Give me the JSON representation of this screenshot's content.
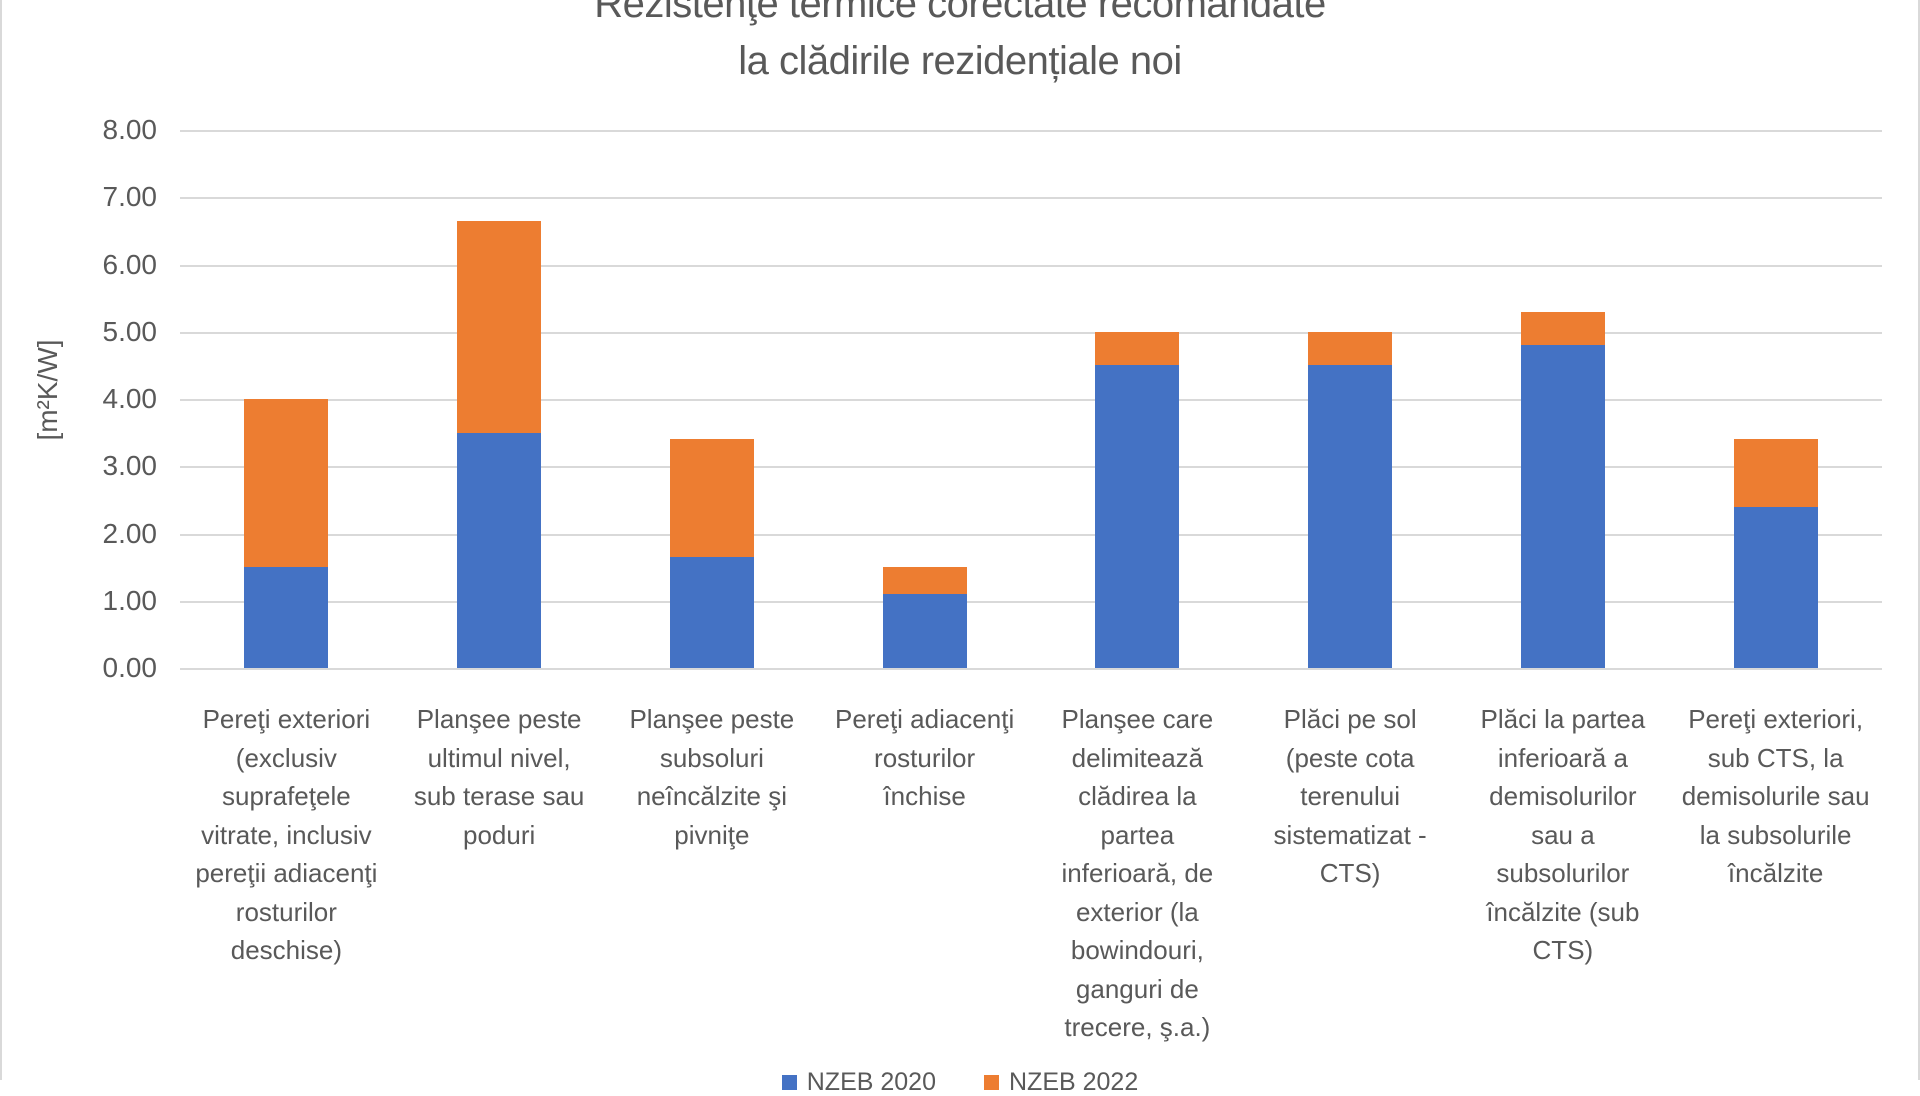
{
  "title": {
    "line1": "Rezistenţe termice corectate recomandate",
    "line2": "la clădirile rezidențiale noi"
  },
  "y_axis": {
    "title": "[m²K/W]",
    "ticks": [
      "8.00",
      "7.00",
      "6.00",
      "5.00",
      "4.00",
      "3.00",
      "2.00",
      "1.00",
      "0.00"
    ],
    "min": 0,
    "max": 8,
    "step": 1
  },
  "legend": [
    {
      "label": "NZEB 2020",
      "color": "#4472C4"
    },
    {
      "label": "NZEB 2022",
      "color": "#ED7D31"
    }
  ],
  "colors": {
    "series1_blue": "#4472C4",
    "series2_orange": "#ED7D31",
    "gridline": "#D9D9D9",
    "text_gray": "#595959"
  },
  "chart_data": {
    "type": "bar",
    "stacked": true,
    "title": "Rezistenţe termice corectate recomandate la clădirile rezidențiale noi",
    "ylabel": "[m²K/W]",
    "ylim": [
      0,
      8
    ],
    "grid": true,
    "legend_position": "bottom",
    "categories": [
      "Pereţi exteriori\n(exclusiv\nsuprafeţele\nvitrate, inclusiv\npereţii adiacenţi\nrosturilor\ndeschise)",
      "Planşee peste\nultimul nivel,\nsub terase sau\npoduri",
      "Planşee peste\nsubsoluri\nneîncălzite şi\npivniţe",
      "Pereţi adiacenţi\nrosturilor\nînchise",
      "Planşee care\ndelimitează\nclădirea la\npartea\ninferioară, de\nexterior (la\nbowindouri,\nganguri de\ntrecere, ş.a.)",
      "Plăci pe sol\n(peste cota\nterenului\nsistematizat -\nCTS)",
      "Plăci la partea\ninferioară a\ndemisolurilor\nsau a\nsubsolurilor\nîncălzite (sub\nCTS)",
      "Pereţi exteriori,\nsub CTS, la\ndemisolurile sau\nla subsolurile\nîncălzite"
    ],
    "series": [
      {
        "name": "NZEB 2020",
        "color": "#4472C4",
        "values": [
          1.5,
          3.5,
          1.65,
          1.1,
          4.5,
          4.5,
          4.8,
          2.4
        ]
      },
      {
        "name": "NZEB 2022",
        "color": "#ED7D31",
        "values": [
          4.0,
          6.65,
          3.4,
          1.5,
          5.0,
          5.0,
          5.3,
          3.4
        ],
        "note": "orange segment drawn stacked from series-1 top up to this total value"
      }
    ]
  }
}
